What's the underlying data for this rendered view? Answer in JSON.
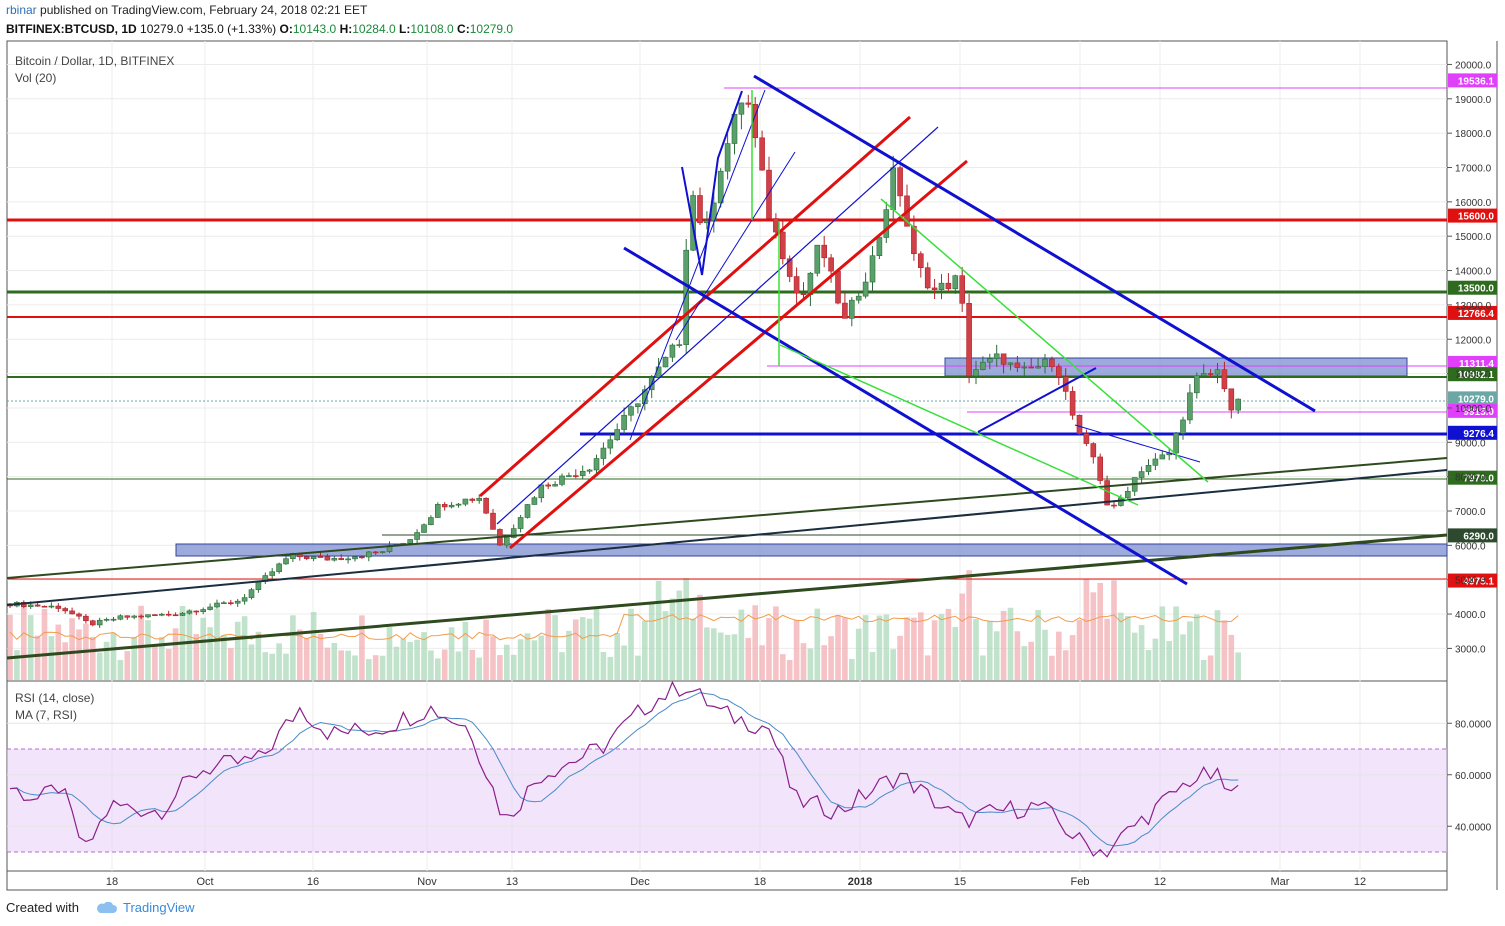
{
  "header": {
    "user": "rbinar",
    "published": "published on TradingView.com, February 24, 2018 02:21 EET",
    "symbol_line": "BITFINEX:BTCUSD, 1D",
    "last": "10279.0",
    "change": "+135.0 (+1.33%)",
    "o_label": "O:",
    "o": "10143.0",
    "h_label": "H:",
    "h": "10284.0",
    "l_label": "L:",
    "l": "10108.0",
    "c_label": "C:",
    "c": "10279.0"
  },
  "chart_data": [
    {
      "type": "candlestick",
      "title": "Bitcoin / Dollar, 1D, BITFINEX",
      "indicator_label": "Vol (20)",
      "y_ticks": [
        3000,
        4000,
        5000,
        6000,
        7000,
        8000,
        9000,
        10000,
        11000,
        12000,
        13000,
        14000,
        15000,
        16000,
        17000,
        18000,
        19000,
        20000
      ],
      "y_tick_labels": [
        "3000.0",
        "4000.0",
        "5000.0",
        "6000.0",
        "7000.0",
        "8000.0",
        "9000.0",
        "10000.0",
        "11000.0",
        "12000.0",
        "13000.0",
        "14000.0",
        "15000.0",
        "16000.0",
        "17000.0",
        "18000.0",
        "19000.0",
        "20000.0"
      ],
      "ylim": [
        2000,
        20700
      ],
      "x_tick_labels": [
        "18",
        "Oct",
        "16",
        "Nov",
        "13",
        "Dec",
        "18",
        "2018",
        "15",
        "Feb",
        "12",
        "Mar",
        "12"
      ],
      "price_labels": [
        {
          "label": "19536.1",
          "value": 19536.1,
          "color": "#e040fb"
        },
        {
          "label": "15600.0",
          "value": 15600,
          "color": "#e01010"
        },
        {
          "label": "13500.0",
          "value": 13500,
          "color": "#2e6b1e"
        },
        {
          "label": "12766.4",
          "value": 12766.4,
          "color": "#e01010"
        },
        {
          "label": "11311.4",
          "value": 11311.4,
          "color": "#e040fb"
        },
        {
          "label": "10982.1",
          "value": 10982.1,
          "color": "#2e6b1e"
        },
        {
          "label": "10279.0",
          "value": 10279,
          "color": "#6aa7a6"
        },
        {
          "label": "9915.0",
          "value": 9915,
          "color": "#e040fb"
        },
        {
          "label": "9276.4",
          "value": 9276.4,
          "color": "#1010d0"
        },
        {
          "label": "7970.0",
          "value": 7970,
          "color": "#2e6b1e"
        },
        {
          "label": "6290.0",
          "value": 6290,
          "color": "#2e4a2e"
        },
        {
          "label": "4975.1",
          "value": 4975.1,
          "color": "#e01010"
        }
      ]
    },
    {
      "type": "line",
      "title": "RSI (14, close)",
      "subtitle": "MA (7, RSI)",
      "y_ticks": [
        40,
        60,
        80
      ],
      "y_tick_labels": [
        "40.0000",
        "60.0000",
        "80.0000"
      ],
      "ylim": [
        24,
        94
      ],
      "band": [
        30,
        70
      ]
    }
  ],
  "footer": {
    "created_with": "Created with",
    "brand": "TradingView"
  }
}
